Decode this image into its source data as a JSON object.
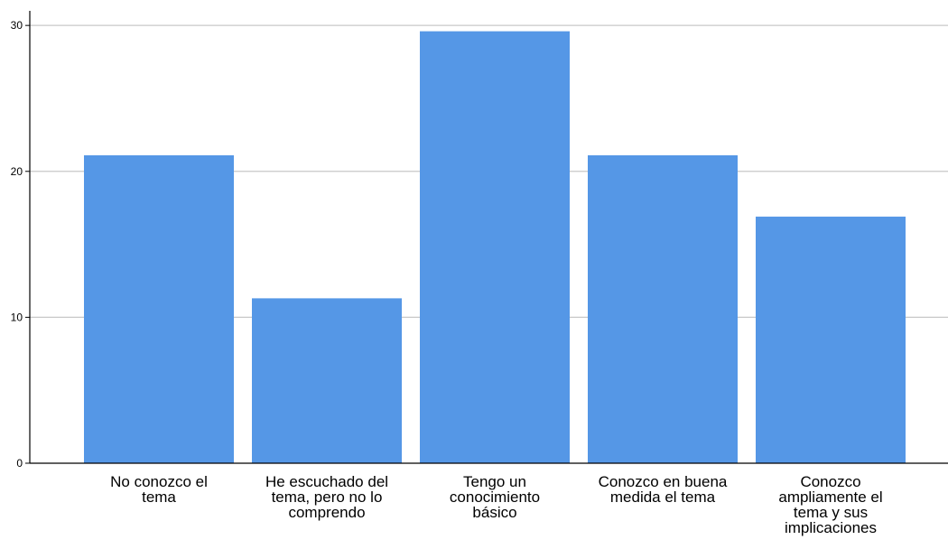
{
  "chart_data": {
    "type": "bar",
    "categories": [
      [
        "No conozco el",
        "tema"
      ],
      [
        "He escuchado del",
        "tema, pero no lo",
        "comprendo"
      ],
      [
        "Tengo un",
        "conocimiento",
        "básico"
      ],
      [
        "Conozco en buena",
        "medida el tema"
      ],
      [
        "Conozco",
        "ampliamente el",
        "tema y sus",
        "implicaciones"
      ]
    ],
    "values": [
      21.1,
      11.3,
      29.6,
      21.1,
      16.9
    ],
    "ylim": [
      0,
      31
    ],
    "yticks": [
      0,
      10,
      20,
      30
    ],
    "grid": true,
    "title": "",
    "xlabel": "",
    "ylabel": ""
  },
  "colors": {
    "bar": "#5597e6",
    "grid": "#c8c8c8",
    "axis": "#000000"
  }
}
